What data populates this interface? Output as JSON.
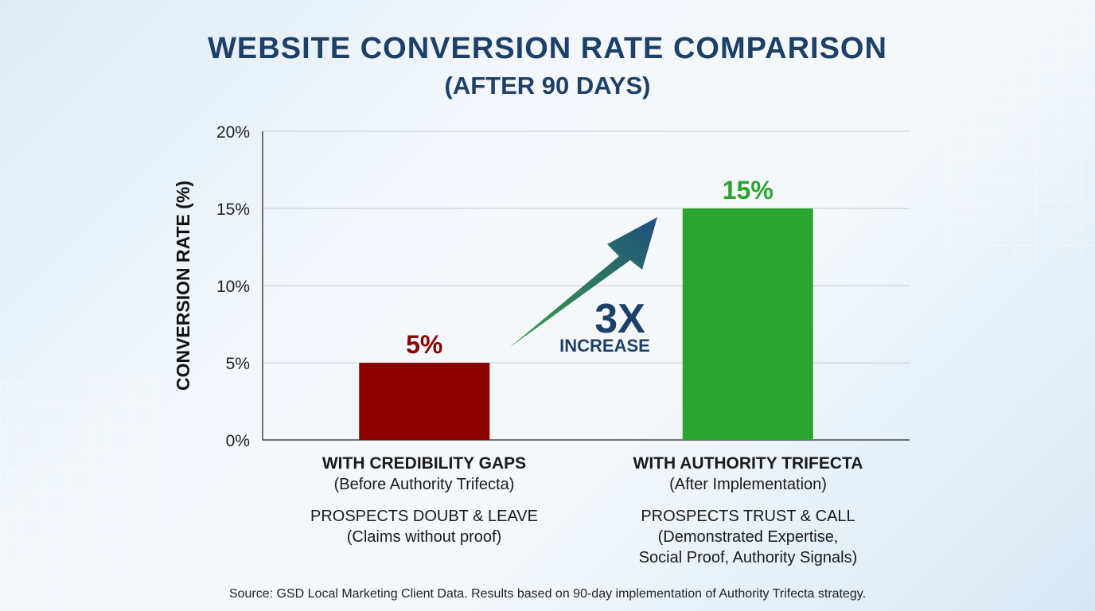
{
  "chart_data": {
    "type": "bar",
    "title": "WEBSITE CONVERSION RATE COMPARISON",
    "subtitle": "(AFTER 90 DAYS)",
    "ylabel": "CONVERSION RATE (%)",
    "xlabel": "",
    "ylim": [
      0,
      20
    ],
    "yticks": [
      "0%",
      "5%",
      "10%",
      "15%",
      "20%"
    ],
    "grid": true,
    "categories": [
      "WITH CREDIBILITY GAPS",
      "WITH AUTHORITY TRIFECTA"
    ],
    "values": [
      5,
      15
    ],
    "data_labels": [
      "5%",
      "15%"
    ],
    "colors": [
      "#8b0000",
      "#2aa630"
    ],
    "category_details": [
      {
        "sub": "(Before Authority Trifecta)",
        "note": "PROSPECTS DOUBT & LEAVE",
        "note_lines": [
          "(Claims without proof)"
        ]
      },
      {
        "sub": "(After Implementation)",
        "note": "PROSPECTS TRUST & CALL",
        "note_lines": [
          "(Demonstrated Expertise,",
          "Social Proof, Authority Signals)"
        ]
      }
    ],
    "annotation": {
      "big": "3X",
      "small": "INCREASE",
      "color": "#1c4068"
    },
    "source": "Source: GSD Local Marketing Client Data. Results based on 90-day implementation of Authority Trifecta strategy."
  }
}
